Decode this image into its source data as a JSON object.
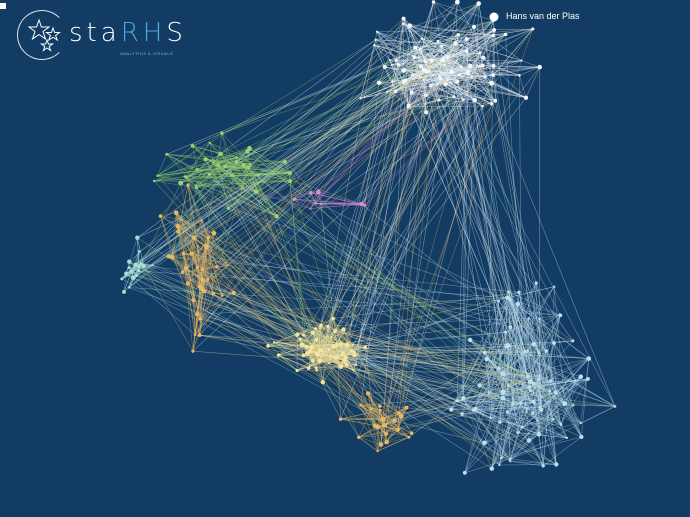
{
  "logo": {
    "text_main": "sta",
    "text_accent": "RH",
    "text_end": "S",
    "subtitle": "ANALYTICS & VISUALS"
  },
  "highlighted_node": {
    "label": "Hans van der Plas"
  },
  "colors": {
    "background": "#123c63",
    "cluster_white": "#f2f6fa",
    "cluster_lightblue": "#bfe0f2",
    "cluster_yellow": "#f3e4a0",
    "cluster_orange": "#e8b964",
    "cluster_green": "#9cd46a",
    "cluster_teal": "#a9ddd6",
    "cluster_pink": "#e08ad8",
    "accent_blue": "#4fa7df"
  }
}
